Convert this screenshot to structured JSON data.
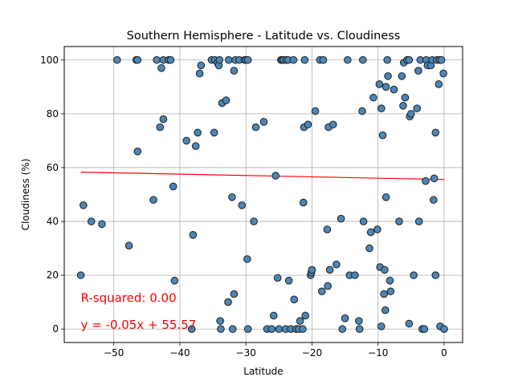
{
  "chart_data": {
    "type": "scatter",
    "title": "Southern Hemisphere - Latitude vs. Cloudiness",
    "xlabel": "Latitude",
    "ylabel": "Cloudiness (%)",
    "xlim": [
      -57.5,
      2.8
    ],
    "ylim": [
      -5,
      105
    ],
    "xticks": [
      -50,
      -40,
      -30,
      -20,
      -10,
      0
    ],
    "xtick_labels": [
      "−50",
      "−40",
      "−30",
      "−20",
      "−10",
      "0"
    ],
    "yticks": [
      0,
      20,
      40,
      60,
      80,
      100
    ],
    "ytick_labels": [
      "0",
      "20",
      "40",
      "60",
      "80",
      "100"
    ],
    "grid": true,
    "marker_color": "#4a87b8",
    "marker_edge": "#1f1f1f",
    "regression": {
      "slope": -0.05,
      "intercept": 55.57,
      "x_range": [
        -55,
        0
      ],
      "color": "#ff0000"
    },
    "annotations": [
      {
        "text": "R-squared: 0.00",
        "x": -55,
        "y": 10
      },
      {
        "text": "y = -0.05x + 55.57",
        "x": -55,
        "y": 0
      }
    ],
    "points": [
      [
        -55,
        20
      ],
      [
        -54.6,
        46
      ],
      [
        -53.4,
        40
      ],
      [
        -51.8,
        39
      ],
      [
        -49.5,
        100
      ],
      [
        -47.7,
        31
      ],
      [
        -46.6,
        100
      ],
      [
        -46.4,
        100
      ],
      [
        -46.4,
        66
      ],
      [
        -44,
        48
      ],
      [
        -43.5,
        100
      ],
      [
        -43,
        75
      ],
      [
        -42.8,
        97
      ],
      [
        -42.5,
        78
      ],
      [
        -42.5,
        100
      ],
      [
        -41.7,
        100
      ],
      [
        -41.4,
        100
      ],
      [
        -41,
        53
      ],
      [
        -40.8,
        18
      ],
      [
        -39,
        70
      ],
      [
        -38.2,
        0
      ],
      [
        -38,
        35
      ],
      [
        -37.6,
        68
      ],
      [
        -37.3,
        73
      ],
      [
        -37,
        95
      ],
      [
        -36.8,
        98
      ],
      [
        -35.2,
        100
      ],
      [
        -34.8,
        73
      ],
      [
        -34.7,
        100
      ],
      [
        -34.3,
        99
      ],
      [
        -34.1,
        98
      ],
      [
        -34,
        100
      ],
      [
        -33.9,
        3
      ],
      [
        -33.8,
        0
      ],
      [
        -33.6,
        84
      ],
      [
        -33,
        85
      ],
      [
        -32.7,
        10
      ],
      [
        -32.6,
        100
      ],
      [
        -32.1,
        49
      ],
      [
        -32,
        0
      ],
      [
        -31.8,
        13
      ],
      [
        -31.8,
        96
      ],
      [
        -31.6,
        100
      ],
      [
        -31,
        100
      ],
      [
        -30.6,
        46
      ],
      [
        -30.2,
        100
      ],
      [
        -30,
        100
      ],
      [
        -29.8,
        26
      ],
      [
        -29.7,
        100
      ],
      [
        -29.7,
        0
      ],
      [
        -28.8,
        40
      ],
      [
        -28.5,
        75
      ],
      [
        -27.3,
        77
      ],
      [
        -26.8,
        0
      ],
      [
        -26.1,
        0
      ],
      [
        -25.8,
        5
      ],
      [
        -25.5,
        57
      ],
      [
        -25.2,
        19
      ],
      [
        -25,
        0
      ],
      [
        -24.7,
        100
      ],
      [
        -24.5,
        100
      ],
      [
        -24.3,
        100
      ],
      [
        -24,
        0
      ],
      [
        -23.9,
        100
      ],
      [
        -23.6,
        100
      ],
      [
        -23.5,
        18
      ],
      [
        -23.2,
        0
      ],
      [
        -22.8,
        100
      ],
      [
        -22.7,
        11
      ],
      [
        -22.4,
        0
      ],
      [
        -22,
        0
      ],
      [
        -21.8,
        3
      ],
      [
        -21.4,
        0
      ],
      [
        -21.3,
        47
      ],
      [
        -21.2,
        75
      ],
      [
        -21.1,
        100
      ],
      [
        -21,
        5
      ],
      [
        -20.6,
        76
      ],
      [
        -20.2,
        20
      ],
      [
        -20.1,
        21
      ],
      [
        -20,
        22
      ],
      [
        -19.5,
        81
      ],
      [
        -18.8,
        100
      ],
      [
        -18.5,
        14
      ],
      [
        -18.3,
        100
      ],
      [
        -17.7,
        37
      ],
      [
        -17.6,
        16
      ],
      [
        -17.5,
        75
      ],
      [
        -17.3,
        22
      ],
      [
        -16.8,
        76
      ],
      [
        -16.3,
        24
      ],
      [
        -15.6,
        41
      ],
      [
        -15.4,
        0
      ],
      [
        -15,
        4
      ],
      [
        -14.6,
        100
      ],
      [
        -14.3,
        20
      ],
      [
        -13.5,
        20
      ],
      [
        -12.9,
        3
      ],
      [
        -12.8,
        0
      ],
      [
        -12.4,
        81
      ],
      [
        -12.3,
        100
      ],
      [
        -12.2,
        40
      ],
      [
        -11.3,
        30
      ],
      [
        -11.1,
        36
      ],
      [
        -10.7,
        86
      ],
      [
        -10.1,
        37
      ],
      [
        -9.8,
        91
      ],
      [
        -9.7,
        23
      ],
      [
        -9.5,
        82
      ],
      [
        -9.5,
        1
      ],
      [
        -9.3,
        72
      ],
      [
        -9.1,
        13
      ],
      [
        -9,
        22
      ],
      [
        -8.9,
        7
      ],
      [
        -8.8,
        90
      ],
      [
        -8.8,
        49
      ],
      [
        -8.6,
        100
      ],
      [
        -8.5,
        94
      ],
      [
        -8.2,
        18
      ],
      [
        -8.1,
        14
      ],
      [
        -7.6,
        89
      ],
      [
        -6.8,
        40
      ],
      [
        -6.4,
        94
      ],
      [
        -6.2,
        83
      ],
      [
        -6.1,
        99
      ],
      [
        -5.9,
        86
      ],
      [
        -5.6,
        100
      ],
      [
        -5.3,
        100
      ],
      [
        -5.3,
        2
      ],
      [
        -5.2,
        79
      ],
      [
        -5,
        80
      ],
      [
        -4.6,
        20
      ],
      [
        -4.1,
        82
      ],
      [
        -3.9,
        96
      ],
      [
        -3.8,
        40
      ],
      [
        -3.6,
        100
      ],
      [
        -3.3,
        0
      ],
      [
        -3,
        0
      ],
      [
        -2.8,
        55
      ],
      [
        -2.7,
        100
      ],
      [
        -2.5,
        98
      ],
      [
        -2,
        98
      ],
      [
        -1.8,
        100
      ],
      [
        -1.6,
        48
      ],
      [
        -1.5,
        56
      ],
      [
        -1.3,
        73
      ],
      [
        -1.3,
        20
      ],
      [
        -1.1,
        100
      ],
      [
        -0.8,
        91
      ],
      [
        -0.7,
        100
      ],
      [
        -0.6,
        1
      ],
      [
        -0.4,
        100
      ],
      [
        -0.1,
        95
      ],
      [
        0,
        0
      ]
    ]
  }
}
